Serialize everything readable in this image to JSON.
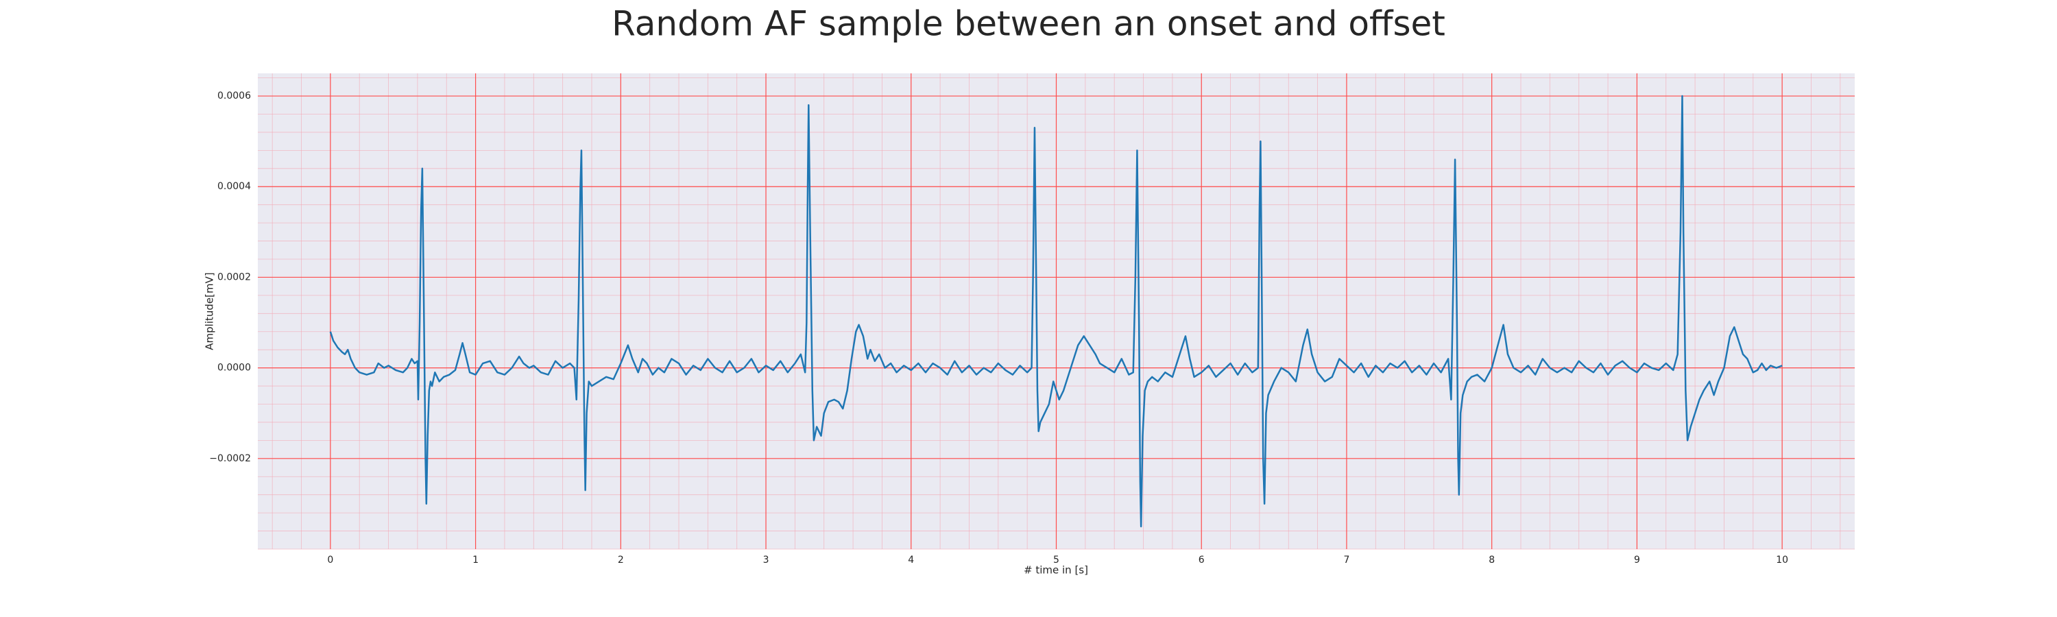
{
  "chart_data": {
    "type": "line",
    "title": "Random AF sample between an onset and offset",
    "xlabel": "# time in [s]",
    "ylabel": "Amplitude[mV]",
    "xlim": [
      -0.5,
      10.5
    ],
    "xticks": [
      0,
      1,
      2,
      3,
      4,
      5,
      6,
      7,
      8,
      9,
      10
    ],
    "ylim": [
      -0.0004,
      0.00065
    ],
    "yticks": [
      {
        "value": -0.0002,
        "label": "−0.0002"
      },
      {
        "value": 0,
        "label": "0.0000"
      },
      {
        "value": 0.0002,
        "label": "0.0002"
      },
      {
        "value": 0.0004,
        "label": "0.0004"
      },
      {
        "value": 0.0006,
        "label": "0.0006"
      }
    ],
    "grid": true,
    "minor_grid": true,
    "color": "#1f77b4",
    "x": [
      0,
      0.02,
      0.05,
      0.08,
      0.1,
      0.12,
      0.14,
      0.17,
      0.2,
      0.25,
      0.3,
      0.33,
      0.37,
      0.4,
      0.45,
      0.5,
      0.53,
      0.56,
      0.58,
      0.6,
      0.605,
      0.615,
      0.625,
      0.633,
      0.645,
      0.655,
      0.661,
      0.67,
      0.68,
      0.69,
      0.7,
      0.72,
      0.75,
      0.78,
      0.82,
      0.86,
      0.89,
      0.91,
      0.93,
      0.96,
      1.0,
      1.05,
      1.1,
      1.15,
      1.2,
      1.25,
      1.3,
      1.33,
      1.37,
      1.4,
      1.45,
      1.5,
      1.55,
      1.6,
      1.65,
      1.68,
      1.695,
      1.71,
      1.722,
      1.729,
      1.74,
      1.75,
      1.756,
      1.765,
      1.78,
      1.8,
      1.85,
      1.9,
      1.95,
      2.0,
      2.05,
      2.08,
      2.12,
      2.15,
      2.18,
      2.22,
      2.26,
      2.3,
      2.35,
      2.4,
      2.45,
      2.5,
      2.55,
      2.6,
      2.65,
      2.7,
      2.75,
      2.8,
      2.85,
      2.9,
      2.95,
      3.0,
      3.05,
      3.1,
      3.15,
      3.2,
      3.24,
      3.27,
      3.28,
      3.288,
      3.294,
      3.305,
      3.32,
      3.33,
      3.35,
      3.38,
      3.4,
      3.43,
      3.47,
      3.5,
      3.53,
      3.56,
      3.59,
      3.62,
      3.64,
      3.67,
      3.7,
      3.72,
      3.75,
      3.78,
      3.82,
      3.86,
      3.9,
      3.95,
      4.0,
      4.05,
      4.1,
      4.15,
      4.2,
      4.25,
      4.3,
      4.35,
      4.4,
      4.45,
      4.5,
      4.55,
      4.6,
      4.65,
      4.7,
      4.75,
      4.8,
      4.83,
      4.84,
      4.851,
      4.86,
      4.87,
      4.878,
      4.89,
      4.92,
      4.95,
      4.98,
      5.02,
      5.05,
      5.1,
      5.15,
      5.19,
      5.23,
      5.27,
      5.3,
      5.35,
      5.4,
      5.45,
      5.5,
      5.53,
      5.545,
      5.557,
      5.57,
      5.578,
      5.584,
      5.595,
      5.61,
      5.63,
      5.66,
      5.7,
      5.75,
      5.8,
      5.85,
      5.89,
      5.92,
      5.95,
      6.0,
      6.05,
      6.1,
      6.15,
      6.2,
      6.25,
      6.3,
      6.35,
      6.39,
      6.4,
      6.407,
      6.415,
      6.425,
      6.434,
      6.445,
      6.46,
      6.5,
      6.55,
      6.6,
      6.65,
      6.7,
      6.73,
      6.76,
      6.8,
      6.85,
      6.9,
      6.95,
      7.0,
      7.05,
      7.1,
      7.15,
      7.2,
      7.25,
      7.3,
      7.35,
      7.4,
      7.45,
      7.5,
      7.55,
      7.6,
      7.65,
      7.7,
      7.72,
      7.735,
      7.747,
      7.76,
      7.768,
      7.774,
      7.785,
      7.8,
      7.83,
      7.86,
      7.9,
      7.95,
      8.0,
      8.05,
      8.08,
      8.11,
      8.15,
      8.2,
      8.25,
      8.3,
      8.35,
      8.4,
      8.45,
      8.5,
      8.55,
      8.6,
      8.65,
      8.7,
      8.75,
      8.8,
      8.85,
      8.9,
      8.95,
      9.0,
      9.05,
      9.1,
      9.15,
      9.2,
      9.25,
      9.28,
      9.3,
      9.312,
      9.32,
      9.335,
      9.348,
      9.37,
      9.4,
      9.43,
      9.46,
      9.5,
      9.53,
      9.56,
      9.6,
      9.64,
      9.67,
      9.7,
      9.73,
      9.76,
      9.8,
      9.83,
      9.86,
      9.89,
      9.92,
      9.96,
      10.0
    ],
    "values": [
      8e-05,
      6e-05,
      4.5e-05,
      3.5e-05,
      3e-05,
      4e-05,
      2e-05,
      0,
      -1e-05,
      -1.5e-05,
      -1e-05,
      1e-05,
      0,
      5e-06,
      -5e-06,
      -1e-05,
      0,
      2e-05,
      1e-05,
      1.5e-05,
      -7e-05,
      0.0001,
      0.00035,
      0.00044,
      0.0001,
      -0.0002,
      -0.0003,
      -0.00015,
      -5e-05,
      -3e-05,
      -4e-05,
      -1e-05,
      -3e-05,
      -2e-05,
      -1.5e-05,
      -5e-06,
      3e-05,
      5.5e-05,
      3e-05,
      -1e-05,
      -1.5e-05,
      1e-05,
      1.5e-05,
      -1e-05,
      -1.5e-05,
      0,
      2.5e-05,
      1e-05,
      0,
      5e-06,
      -1e-05,
      -1.5e-05,
      1.5e-05,
      0,
      1e-05,
      0,
      -7e-05,
      0.00015,
      0.0004,
      0.00048,
      0.00015,
      -0.00015,
      -0.00027,
      -0.0001,
      -3e-05,
      -4e-05,
      -3e-05,
      -2e-05,
      -2.5e-05,
      1e-05,
      5e-05,
      2e-05,
      -1e-05,
      2e-05,
      1e-05,
      -1.5e-05,
      0,
      -1e-05,
      2e-05,
      1e-05,
      -1.5e-05,
      5e-06,
      -5e-06,
      2e-05,
      0,
      -1e-05,
      1.5e-05,
      -1e-05,
      0,
      2e-05,
      -1e-05,
      5e-06,
      -5e-06,
      1.5e-05,
      -1e-05,
      1e-05,
      3e-05,
      -1e-05,
      0.0001,
      0.0004,
      0.00058,
      0.0003,
      -5e-05,
      -0.00016,
      -0.00013,
      -0.00015,
      -0.0001,
      -7.5e-05,
      -7e-05,
      -7.5e-05,
      -9e-05,
      -5e-05,
      2e-05,
      8e-05,
      9.5e-05,
      7e-05,
      2e-05,
      4e-05,
      1.5e-05,
      3e-05,
      0,
      1e-05,
      -1e-05,
      5e-06,
      -5e-06,
      1e-05,
      -1e-05,
      1e-05,
      0,
      -1.5e-05,
      1.5e-05,
      -1e-05,
      5e-06,
      -1.5e-05,
      0,
      -1e-05,
      1e-05,
      -5e-06,
      -1.5e-05,
      5e-06,
      -1e-05,
      0,
      0.0002,
      0.00053,
      0.00025,
      -5e-05,
      -0.00014,
      -0.00012,
      -0.0001,
      -8e-05,
      -3e-05,
      -7e-05,
      -5e-05,
      0,
      5e-05,
      7e-05,
      5e-05,
      3e-05,
      1e-05,
      0,
      -1e-05,
      2e-05,
      -1.5e-05,
      -1e-05,
      0.0002,
      0.00048,
      0.0001,
      -0.00025,
      -0.00035,
      -0.00015,
      -5e-05,
      -3e-05,
      -2e-05,
      -3e-05,
      -1e-05,
      -2e-05,
      3e-05,
      7e-05,
      2e-05,
      -2e-05,
      -1e-05,
      5e-06,
      -2e-05,
      -5e-06,
      1e-05,
      -1.5e-05,
      1e-05,
      -1e-05,
      0,
      0.00035,
      0.0005,
      0.0002,
      -0.0002,
      -0.0003,
      -0.0001,
      -6e-05,
      -3e-05,
      0,
      -1e-05,
      -3e-05,
      5e-05,
      8.5e-05,
      3e-05,
      -1e-05,
      -3e-05,
      -2e-05,
      2e-05,
      5e-06,
      -1e-05,
      1e-05,
      -2e-05,
      5e-06,
      -1e-05,
      1e-05,
      0,
      1.5e-05,
      -1e-05,
      5e-06,
      -1.5e-05,
      1e-05,
      -1e-05,
      2e-05,
      -7e-05,
      0.0002,
      0.00046,
      0.0001,
      -0.0002,
      -0.00028,
      -0.0001,
      -6e-05,
      -3e-05,
      -2e-05,
      -1.5e-05,
      -3e-05,
      0,
      6e-05,
      9.5e-05,
      3e-05,
      0,
      -1e-05,
      5e-06,
      -1.5e-05,
      2e-05,
      0,
      -1e-05,
      0,
      -1e-05,
      1.5e-05,
      0,
      -1e-05,
      1e-05,
      -1.5e-05,
      5e-06,
      1.5e-05,
      0,
      -1e-05,
      1e-05,
      0,
      -5e-06,
      1e-05,
      -5e-06,
      3e-05,
      0.0003,
      0.0006,
      0.0003,
      -5e-05,
      -0.00016,
      -0.00013,
      -0.0001,
      -7e-05,
      -5e-05,
      -3e-05,
      -6e-05,
      -3e-05,
      0,
      7e-05,
      9e-05,
      6e-05,
      3e-05,
      2e-05,
      -1e-05,
      -5e-06,
      1e-05,
      -5e-06,
      5e-06,
      0,
      5e-06
    ]
  }
}
